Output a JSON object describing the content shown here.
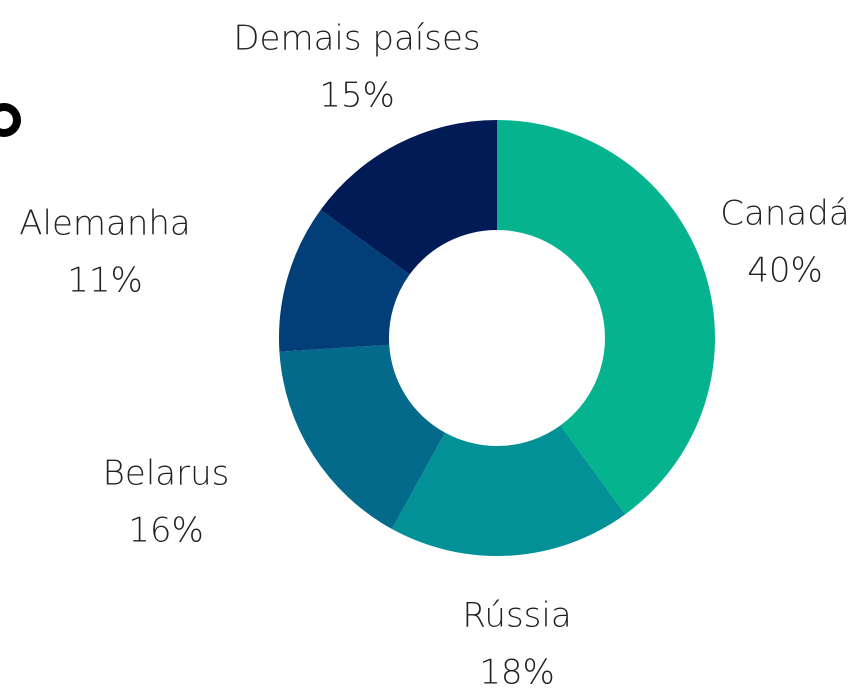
{
  "chart_data": {
    "type": "donut",
    "categories": [
      "Canadá",
      "Rússia",
      "Belarus",
      "Alemanha",
      "Demais países"
    ],
    "values": [
      40,
      18,
      16,
      11,
      15
    ],
    "value_labels": [
      "40%",
      "18%",
      "16%",
      "11%",
      "15%"
    ],
    "colors": [
      "#05b38e",
      "#019196",
      "#036a8c",
      "#023f78",
      "#011b56"
    ]
  }
}
